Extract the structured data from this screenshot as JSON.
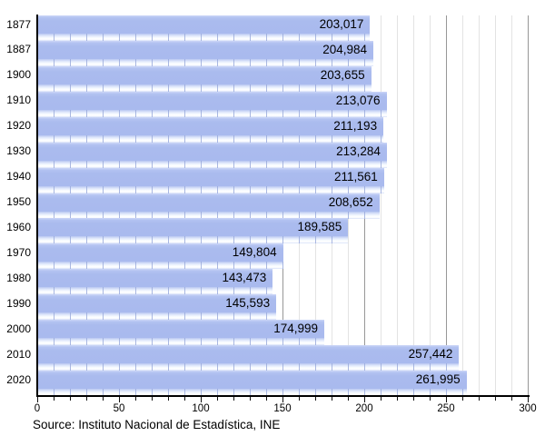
{
  "chart_data": {
    "type": "bar",
    "orientation": "horizontal",
    "title": "",
    "categories": [
      "1877",
      "1887",
      "1900",
      "1910",
      "1920",
      "1930",
      "1940",
      "1950",
      "1960",
      "1970",
      "1980",
      "1990",
      "2000",
      "2010",
      "2020"
    ],
    "values": [
      203017,
      204984,
      203655,
      213076,
      211193,
      213284,
      211561,
      208652,
      189585,
      149804,
      143473,
      145593,
      174999,
      257442,
      261995
    ],
    "value_labels": [
      "203,017",
      "204,984",
      "203,655",
      "213,076",
      "211,193",
      "213,284",
      "211,561",
      "208,652",
      "189,585",
      "149,804",
      "143,473",
      "145,593",
      "174,999",
      "257,442",
      "261,995"
    ],
    "x_axis": {
      "ticks": [
        0,
        50,
        100,
        150,
        200,
        250,
        300
      ],
      "minor_step": 10,
      "lim": [
        0,
        300
      ]
    },
    "grid": {
      "minor": true,
      "major": true,
      "legend_position": "none"
    },
    "source": "Source: Instituto Nacional de Estadística, INE",
    "colors": {
      "bar": "#aabbee",
      "bar_gloss": "#ffffff",
      "grid_minor": "#e3e3e3",
      "grid_major": "#979797",
      "axis": "#000000",
      "text": "#000000"
    }
  }
}
